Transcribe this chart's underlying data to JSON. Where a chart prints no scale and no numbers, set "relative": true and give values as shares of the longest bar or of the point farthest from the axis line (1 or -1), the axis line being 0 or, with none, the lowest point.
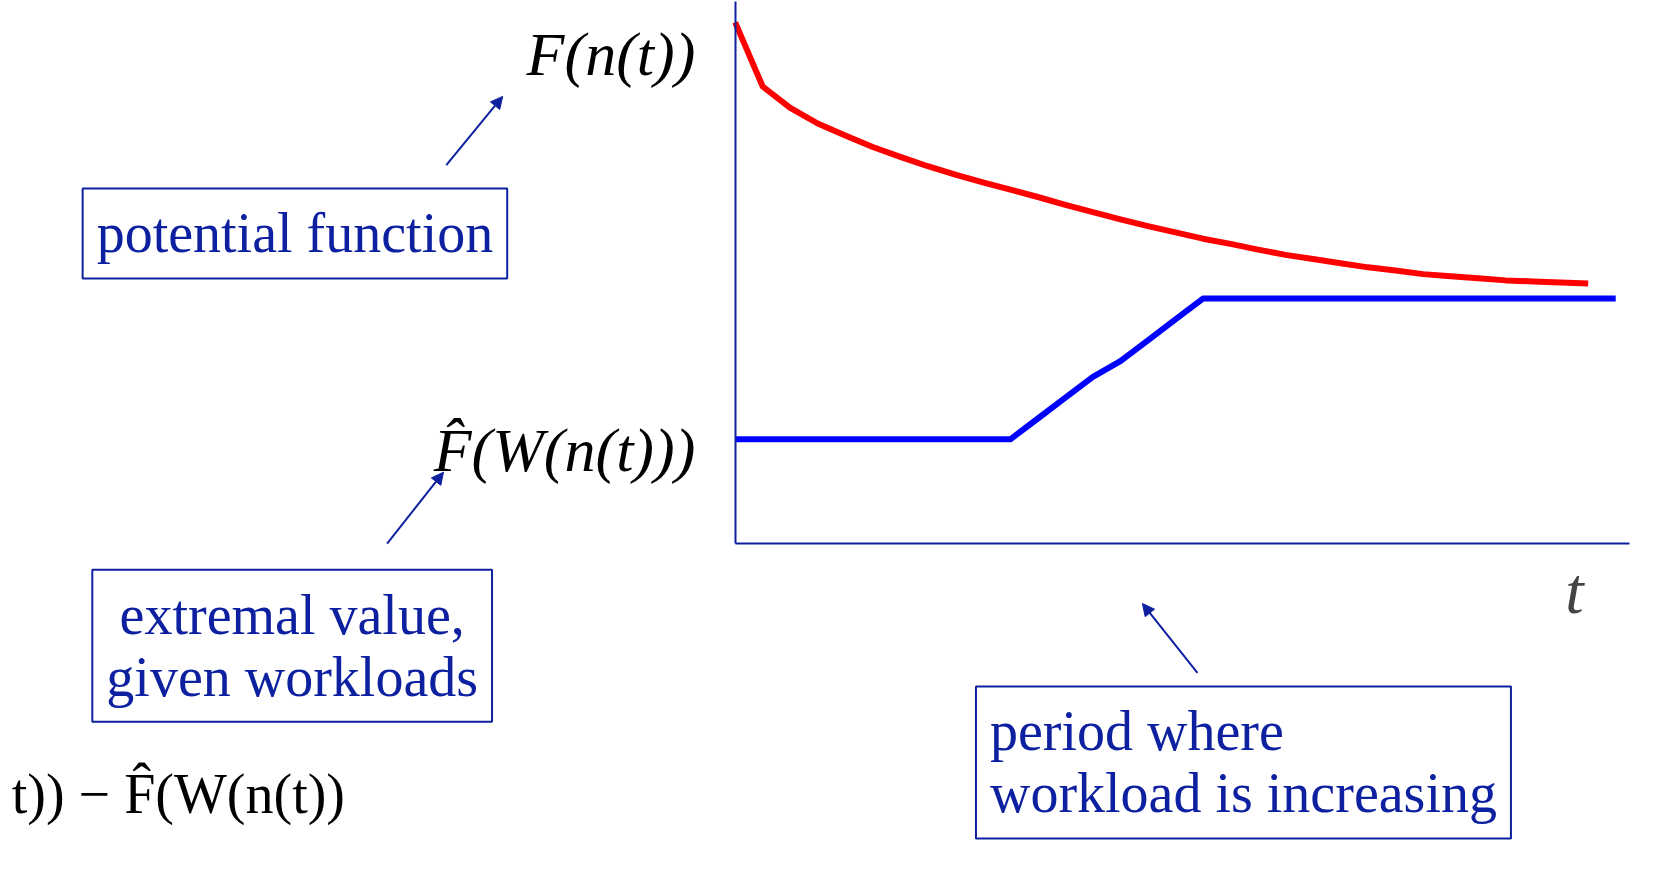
{
  "chart_data": {
    "type": "line",
    "relative": true,
    "marker": "none",
    "line_style": "solid",
    "categories": [
      null,
      null,
      null,
      null,
      null,
      null,
      null,
      null,
      null,
      null,
      null,
      null,
      null,
      null,
      null,
      null,
      null,
      null,
      null,
      null,
      null,
      null,
      null,
      null,
      null,
      null,
      null,
      null,
      null,
      null,
      null,
      null,
      null
    ],
    "series": [
      {
        "name": "F(n(t))",
        "color": "#ff0000",
        "values": [
          1.0,
          0.877,
          0.836,
          0.806,
          0.783,
          0.761,
          0.742,
          0.724,
          0.708,
          0.693,
          0.679,
          0.665,
          0.65,
          0.636,
          0.622,
          0.609,
          0.597,
          0.585,
          0.575,
          0.564,
          0.554,
          0.546,
          0.538,
          0.53,
          0.524,
          0.517,
          0.513,
          0.509,
          0.505,
          0.503,
          0.501,
          0.499,
          null
        ]
      },
      {
        "name": "F̂(W(n(t)))",
        "color": "#0000ff",
        "values": [
          0.2,
          0.2,
          0.2,
          0.2,
          0.2,
          0.2,
          0.2,
          0.2,
          0.2,
          0.2,
          0.2,
          0.24,
          0.28,
          0.32,
          0.35,
          0.39,
          0.43,
          0.47,
          0.47,
          0.47,
          0.47,
          0.47,
          0.47,
          0.47,
          0.47,
          0.47,
          0.47,
          0.47,
          0.47,
          0.47,
          0.47,
          0.47,
          0.47
        ]
      }
    ],
    "xlabel": "t",
    "annotations": [
      "potential function",
      "extremal value,\ngiven workloads",
      "t)) − F̂(W(n(t))",
      "period where\nworkload is increasing"
    ]
  }
}
